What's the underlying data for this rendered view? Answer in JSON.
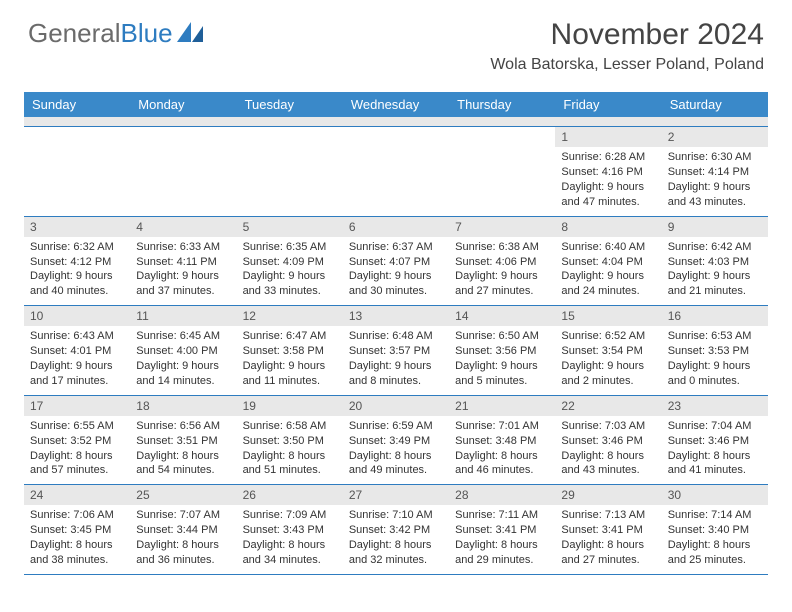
{
  "brand": {
    "part1": "General",
    "part2": "Blue"
  },
  "title": "November 2024",
  "location": "Wola Batorska, Lesser Poland, Poland",
  "dayNames": [
    "Sunday",
    "Monday",
    "Tuesday",
    "Wednesday",
    "Thursday",
    "Friday",
    "Saturday"
  ],
  "colors": {
    "header_bg": "#3a89c9",
    "accent": "#2e7cc0",
    "daynum_bg": "#e8e8e8",
    "text": "#333333"
  },
  "weeks": [
    [
      null,
      null,
      null,
      null,
      null,
      {
        "n": "1",
        "sr": "Sunrise: 6:28 AM",
        "ss": "Sunset: 4:16 PM",
        "d1": "Daylight: 9 hours",
        "d2": "and 47 minutes."
      },
      {
        "n": "2",
        "sr": "Sunrise: 6:30 AM",
        "ss": "Sunset: 4:14 PM",
        "d1": "Daylight: 9 hours",
        "d2": "and 43 minutes."
      }
    ],
    [
      {
        "n": "3",
        "sr": "Sunrise: 6:32 AM",
        "ss": "Sunset: 4:12 PM",
        "d1": "Daylight: 9 hours",
        "d2": "and 40 minutes."
      },
      {
        "n": "4",
        "sr": "Sunrise: 6:33 AM",
        "ss": "Sunset: 4:11 PM",
        "d1": "Daylight: 9 hours",
        "d2": "and 37 minutes."
      },
      {
        "n": "5",
        "sr": "Sunrise: 6:35 AM",
        "ss": "Sunset: 4:09 PM",
        "d1": "Daylight: 9 hours",
        "d2": "and 33 minutes."
      },
      {
        "n": "6",
        "sr": "Sunrise: 6:37 AM",
        "ss": "Sunset: 4:07 PM",
        "d1": "Daylight: 9 hours",
        "d2": "and 30 minutes."
      },
      {
        "n": "7",
        "sr": "Sunrise: 6:38 AM",
        "ss": "Sunset: 4:06 PM",
        "d1": "Daylight: 9 hours",
        "d2": "and 27 minutes."
      },
      {
        "n": "8",
        "sr": "Sunrise: 6:40 AM",
        "ss": "Sunset: 4:04 PM",
        "d1": "Daylight: 9 hours",
        "d2": "and 24 minutes."
      },
      {
        "n": "9",
        "sr": "Sunrise: 6:42 AM",
        "ss": "Sunset: 4:03 PM",
        "d1": "Daylight: 9 hours",
        "d2": "and 21 minutes."
      }
    ],
    [
      {
        "n": "10",
        "sr": "Sunrise: 6:43 AM",
        "ss": "Sunset: 4:01 PM",
        "d1": "Daylight: 9 hours",
        "d2": "and 17 minutes."
      },
      {
        "n": "11",
        "sr": "Sunrise: 6:45 AM",
        "ss": "Sunset: 4:00 PM",
        "d1": "Daylight: 9 hours",
        "d2": "and 14 minutes."
      },
      {
        "n": "12",
        "sr": "Sunrise: 6:47 AM",
        "ss": "Sunset: 3:58 PM",
        "d1": "Daylight: 9 hours",
        "d2": "and 11 minutes."
      },
      {
        "n": "13",
        "sr": "Sunrise: 6:48 AM",
        "ss": "Sunset: 3:57 PM",
        "d1": "Daylight: 9 hours",
        "d2": "and 8 minutes."
      },
      {
        "n": "14",
        "sr": "Sunrise: 6:50 AM",
        "ss": "Sunset: 3:56 PM",
        "d1": "Daylight: 9 hours",
        "d2": "and 5 minutes."
      },
      {
        "n": "15",
        "sr": "Sunrise: 6:52 AM",
        "ss": "Sunset: 3:54 PM",
        "d1": "Daylight: 9 hours",
        "d2": "and 2 minutes."
      },
      {
        "n": "16",
        "sr": "Sunrise: 6:53 AM",
        "ss": "Sunset: 3:53 PM",
        "d1": "Daylight: 9 hours",
        "d2": "and 0 minutes."
      }
    ],
    [
      {
        "n": "17",
        "sr": "Sunrise: 6:55 AM",
        "ss": "Sunset: 3:52 PM",
        "d1": "Daylight: 8 hours",
        "d2": "and 57 minutes."
      },
      {
        "n": "18",
        "sr": "Sunrise: 6:56 AM",
        "ss": "Sunset: 3:51 PM",
        "d1": "Daylight: 8 hours",
        "d2": "and 54 minutes."
      },
      {
        "n": "19",
        "sr": "Sunrise: 6:58 AM",
        "ss": "Sunset: 3:50 PM",
        "d1": "Daylight: 8 hours",
        "d2": "and 51 minutes."
      },
      {
        "n": "20",
        "sr": "Sunrise: 6:59 AM",
        "ss": "Sunset: 3:49 PM",
        "d1": "Daylight: 8 hours",
        "d2": "and 49 minutes."
      },
      {
        "n": "21",
        "sr": "Sunrise: 7:01 AM",
        "ss": "Sunset: 3:48 PM",
        "d1": "Daylight: 8 hours",
        "d2": "and 46 minutes."
      },
      {
        "n": "22",
        "sr": "Sunrise: 7:03 AM",
        "ss": "Sunset: 3:46 PM",
        "d1": "Daylight: 8 hours",
        "d2": "and 43 minutes."
      },
      {
        "n": "23",
        "sr": "Sunrise: 7:04 AM",
        "ss": "Sunset: 3:46 PM",
        "d1": "Daylight: 8 hours",
        "d2": "and 41 minutes."
      }
    ],
    [
      {
        "n": "24",
        "sr": "Sunrise: 7:06 AM",
        "ss": "Sunset: 3:45 PM",
        "d1": "Daylight: 8 hours",
        "d2": "and 38 minutes."
      },
      {
        "n": "25",
        "sr": "Sunrise: 7:07 AM",
        "ss": "Sunset: 3:44 PM",
        "d1": "Daylight: 8 hours",
        "d2": "and 36 minutes."
      },
      {
        "n": "26",
        "sr": "Sunrise: 7:09 AM",
        "ss": "Sunset: 3:43 PM",
        "d1": "Daylight: 8 hours",
        "d2": "and 34 minutes."
      },
      {
        "n": "27",
        "sr": "Sunrise: 7:10 AM",
        "ss": "Sunset: 3:42 PM",
        "d1": "Daylight: 8 hours",
        "d2": "and 32 minutes."
      },
      {
        "n": "28",
        "sr": "Sunrise: 7:11 AM",
        "ss": "Sunset: 3:41 PM",
        "d1": "Daylight: 8 hours",
        "d2": "and 29 minutes."
      },
      {
        "n": "29",
        "sr": "Sunrise: 7:13 AM",
        "ss": "Sunset: 3:41 PM",
        "d1": "Daylight: 8 hours",
        "d2": "and 27 minutes."
      },
      {
        "n": "30",
        "sr": "Sunrise: 7:14 AM",
        "ss": "Sunset: 3:40 PM",
        "d1": "Daylight: 8 hours",
        "d2": "and 25 minutes."
      }
    ]
  ]
}
